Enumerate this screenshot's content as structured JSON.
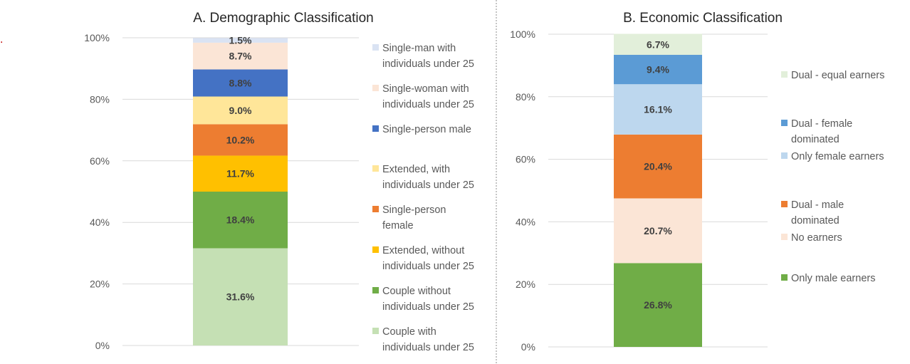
{
  "page": {
    "marker": "."
  },
  "chart_data": [
    {
      "type": "bar",
      "stacked": true,
      "title": "A. Demographic Classification",
      "categories": [
        ""
      ],
      "ylim": [
        0,
        100
      ],
      "yticks": [
        0,
        20,
        40,
        60,
        80,
        100
      ],
      "ytick_labels": [
        "0%",
        "20%",
        "40%",
        "60%",
        "80%",
        "100%"
      ],
      "legend_position": "right",
      "series": [
        {
          "name": "Couple with individuals under 25",
          "legend_lines": [
            "Couple with",
            "individuals under 25"
          ],
          "value": 31.6,
          "label": "31.6%",
          "color": "#c5e0b4"
        },
        {
          "name": "Couple without individuals under 25",
          "legend_lines": [
            "Couple without",
            "individuals under 25"
          ],
          "value": 18.4,
          "label": "18.4%",
          "color": "#70ad47"
        },
        {
          "name": "Extended, without individuals under 25",
          "legend_lines": [
            "Extended, without",
            "individuals under 25"
          ],
          "value": 11.7,
          "label": "11.7%",
          "color": "#ffc000"
        },
        {
          "name": "Single-person female",
          "legend_lines": [
            "Single-person",
            "female"
          ],
          "value": 10.2,
          "label": "10.2%",
          "color": "#ed7d31"
        },
        {
          "name": "Extended, with individuals under 25",
          "legend_lines": [
            "Extended, with",
            "individuals under 25"
          ],
          "value": 9.0,
          "label": "9.0%",
          "color": "#ffe699"
        },
        {
          "name": "Single-person male",
          "legend_lines": [
            "Single-person male"
          ],
          "value": 8.8,
          "label": "8.8%",
          "color": "#4472c4"
        },
        {
          "name": "Single-woman with individuals under 25",
          "legend_lines": [
            "Single-woman with",
            "individuals under 25"
          ],
          "value": 8.7,
          "label": "8.7%",
          "color": "#fbe5d6"
        },
        {
          "name": "Single-man with individuals under 25",
          "legend_lines": [
            "Single-man with",
            "individuals under 25"
          ],
          "value": 1.5,
          "label": "1.5%",
          "color": "#dae3f3"
        }
      ]
    },
    {
      "type": "bar",
      "stacked": true,
      "title": "B. Economic Classification",
      "categories": [
        ""
      ],
      "ylim": [
        0,
        100
      ],
      "yticks": [
        0,
        20,
        40,
        60,
        80,
        100
      ],
      "ytick_labels": [
        "0%",
        "20%",
        "40%",
        "60%",
        "80%",
        "100%"
      ],
      "legend_position": "right",
      "series": [
        {
          "name": "Only male earners",
          "legend_lines": [
            "Only male earners"
          ],
          "value": 26.8,
          "label": "26.8%",
          "color": "#70ad47"
        },
        {
          "name": "No earners",
          "legend_lines": [
            "No earners"
          ],
          "value": 20.7,
          "label": "20.7%",
          "color": "#fbe5d6"
        },
        {
          "name": "Dual - male dominated",
          "legend_lines": [
            "Dual - male",
            "dominated"
          ],
          "value": 20.4,
          "label": "20.4%",
          "color": "#ed7d31"
        },
        {
          "name": "Only female earners",
          "legend_lines": [
            "Only female earners"
          ],
          "value": 16.1,
          "label": "16.1%",
          "color": "#bdd7ee"
        },
        {
          "name": "Dual - female dominated",
          "legend_lines": [
            "Dual - female",
            "dominated"
          ],
          "value": 9.4,
          "label": "9.4%",
          "color": "#5b9bd5"
        },
        {
          "name": "Dual - equal earners",
          "legend_lines": [
            "Dual - equal earners"
          ],
          "value": 6.7,
          "label": "6.7%",
          "color": "#e2efda"
        }
      ]
    }
  ]
}
